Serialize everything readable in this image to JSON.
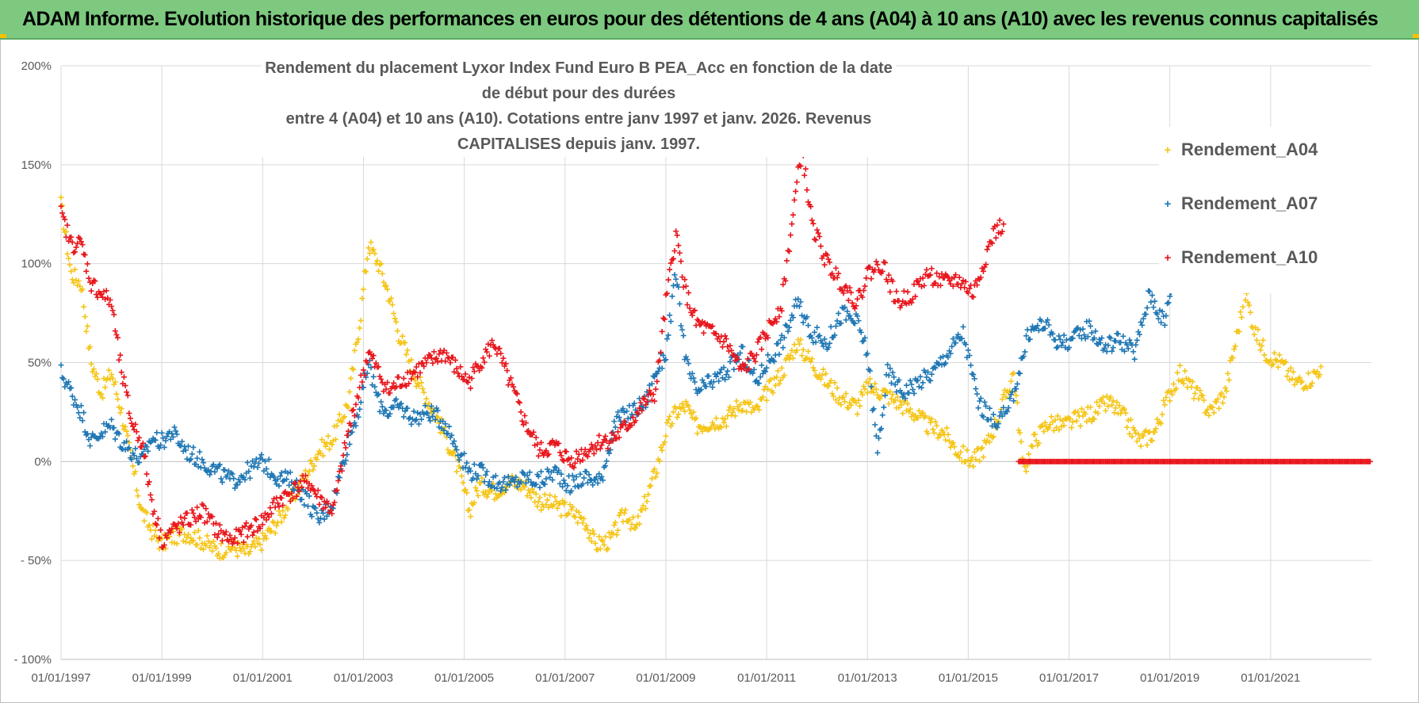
{
  "banner": {
    "title": "ADAM Informe. Evolution historique des performances en euros pour des détentions de 4 ans (A04) à 10 ans (A10) avec les revenus connus capitalisés"
  },
  "colors": {
    "banner_bg": "#7cc97f",
    "A04": "#f5c518",
    "A07": "#1f77b4",
    "A10": "#e8161c",
    "grid": "#d9d9d9",
    "text": "#595959"
  },
  "chart_data": {
    "type": "scatter",
    "title_line1": "Rendement du placement Lyxor Index Fund Euro B PEA_Acc en fonction de la date de début pour des durées",
    "title_line2": "entre 4 (A04) et 10 ans (A10). Cotations entre janv 1997 et janv. 2026. Revenus CAPITALISES depuis janv. 1997.",
    "xlabel": "",
    "ylabel": "",
    "xlim": [
      "1997-01-01",
      "2023-01-01"
    ],
    "ylim": [
      -100,
      200
    ],
    "y_ticks": [
      -100,
      -50,
      0,
      50,
      100,
      150,
      200
    ],
    "y_tick_labels": [
      "- 100%",
      "- 50%",
      "0%",
      "50%",
      "100%",
      "150%",
      "200%"
    ],
    "x_ticks": [
      1997,
      1999,
      2001,
      2003,
      2005,
      2007,
      2009,
      2011,
      2013,
      2015,
      2017,
      2019,
      2021
    ],
    "x_tick_labels": [
      "01/01/1997",
      "01/01/1999",
      "01/01/2001",
      "01/01/2003",
      "01/01/2005",
      "01/01/2007",
      "01/01/2009",
      "01/01/2011",
      "01/01/2013",
      "01/01/2015",
      "01/01/2017",
      "01/01/2019",
      "01/01/2021"
    ],
    "grid": true,
    "legend_position": "top-right",
    "series": [
      {
        "name": "Rendement_A04",
        "color": "#f5c518",
        "marker": "+",
        "points": [
          [
            1997.0,
            130
          ],
          [
            1997.2,
            95
          ],
          [
            1997.4,
            90
          ],
          [
            1997.6,
            50
          ],
          [
            1997.8,
            35
          ],
          [
            1998.0,
            45
          ],
          [
            1998.2,
            25
          ],
          [
            1998.4,
            0
          ],
          [
            1998.6,
            -25
          ],
          [
            1998.8,
            -35
          ],
          [
            1999.0,
            -42
          ],
          [
            1999.2,
            -38
          ],
          [
            1999.5,
            -36
          ],
          [
            1999.8,
            -40
          ],
          [
            2000.1,
            -45
          ],
          [
            2000.4,
            -43
          ],
          [
            2000.7,
            -46
          ],
          [
            2001.0,
            -40
          ],
          [
            2001.3,
            -30
          ],
          [
            2001.6,
            -18
          ],
          [
            2001.9,
            -5
          ],
          [
            2002.1,
            5
          ],
          [
            2002.4,
            12
          ],
          [
            2002.7,
            30
          ],
          [
            2002.95,
            75
          ],
          [
            2003.1,
            110
          ],
          [
            2003.3,
            100
          ],
          [
            2003.5,
            85
          ],
          [
            2003.7,
            65
          ],
          [
            2004.0,
            45
          ],
          [
            2004.3,
            30
          ],
          [
            2004.6,
            15
          ],
          [
            2004.9,
            -5
          ],
          [
            2005.1,
            -25
          ],
          [
            2005.3,
            -12
          ],
          [
            2005.6,
            -15
          ],
          [
            2005.9,
            -10
          ],
          [
            2006.2,
            -12
          ],
          [
            2006.5,
            -20
          ],
          [
            2006.8,
            -22
          ],
          [
            2007.1,
            -25
          ],
          [
            2007.4,
            -30
          ],
          [
            2007.6,
            -42
          ],
          [
            2007.9,
            -40
          ],
          [
            2008.2,
            -25
          ],
          [
            2008.4,
            -35
          ],
          [
            2008.6,
            -20
          ],
          [
            2008.8,
            -5
          ],
          [
            2009.0,
            15
          ],
          [
            2009.2,
            25
          ],
          [
            2009.4,
            28
          ],
          [
            2009.6,
            18
          ],
          [
            2009.9,
            20
          ],
          [
            2010.2,
            22
          ],
          [
            2010.5,
            30
          ],
          [
            2010.8,
            25
          ],
          [
            2011.0,
            35
          ],
          [
            2011.3,
            45
          ],
          [
            2011.6,
            60
          ],
          [
            2011.9,
            50
          ],
          [
            2012.2,
            40
          ],
          [
            2012.5,
            32
          ],
          [
            2012.8,
            28
          ],
          [
            2013.0,
            38
          ],
          [
            2013.3,
            35
          ],
          [
            2013.6,
            30
          ],
          [
            2013.9,
            25
          ],
          [
            2014.2,
            18
          ],
          [
            2014.5,
            15
          ],
          [
            2014.8,
            5
          ],
          [
            2015.1,
            0
          ],
          [
            2015.4,
            10
          ],
          [
            2015.7,
            30
          ],
          [
            2015.9,
            45
          ],
          [
            2016.1,
            -5
          ],
          [
            2016.3,
            10
          ],
          [
            2016.6,
            20
          ],
          [
            2016.9,
            18
          ],
          [
            2017.2,
            22
          ],
          [
            2017.5,
            25
          ],
          [
            2017.8,
            30
          ],
          [
            2018.1,
            22
          ],
          [
            2018.4,
            10
          ],
          [
            2018.7,
            15
          ],
          [
            2019.0,
            35
          ],
          [
            2019.2,
            45
          ],
          [
            2019.5,
            35
          ],
          [
            2019.8,
            25
          ],
          [
            2020.1,
            35
          ],
          [
            2020.3,
            60
          ],
          [
            2020.5,
            85
          ],
          [
            2020.7,
            65
          ],
          [
            2020.9,
            55
          ],
          [
            2021.2,
            50
          ],
          [
            2021.5,
            40
          ],
          [
            2021.8,
            42
          ],
          [
            2022.0,
            48
          ]
        ]
      },
      {
        "name": "Rendement_A07",
        "color": "#1f77b4",
        "marker": "+",
        "points": [
          [
            1997.0,
            45
          ],
          [
            1997.2,
            35
          ],
          [
            1997.4,
            25
          ],
          [
            1997.6,
            10
          ],
          [
            1997.8,
            15
          ],
          [
            1998.0,
            18
          ],
          [
            1998.2,
            10
          ],
          [
            1998.4,
            5
          ],
          [
            1998.6,
            0
          ],
          [
            1998.8,
            12
          ],
          [
            1999.0,
            10
          ],
          [
            1999.2,
            15
          ],
          [
            1999.5,
            5
          ],
          [
            1999.8,
            0
          ],
          [
            2000.1,
            -5
          ],
          [
            2000.4,
            -10
          ],
          [
            2000.7,
            -5
          ],
          [
            2001.0,
            0
          ],
          [
            2001.3,
            -8
          ],
          [
            2001.6,
            -10
          ],
          [
            2001.9,
            -20
          ],
          [
            2002.1,
            -30
          ],
          [
            2002.4,
            -20
          ],
          [
            2002.7,
            10
          ],
          [
            2002.95,
            30
          ],
          [
            2003.1,
            50
          ],
          [
            2003.3,
            30
          ],
          [
            2003.5,
            25
          ],
          [
            2003.7,
            28
          ],
          [
            2004.0,
            22
          ],
          [
            2004.3,
            25
          ],
          [
            2004.6,
            20
          ],
          [
            2004.9,
            5
          ],
          [
            2005.1,
            -5
          ],
          [
            2005.3,
            -5
          ],
          [
            2005.6,
            -10
          ],
          [
            2005.9,
            -12
          ],
          [
            2006.2,
            -8
          ],
          [
            2006.5,
            -10
          ],
          [
            2006.8,
            -5
          ],
          [
            2007.1,
            -12
          ],
          [
            2007.4,
            -8
          ],
          [
            2007.7,
            -10
          ],
          [
            2008.0,
            20
          ],
          [
            2008.3,
            25
          ],
          [
            2008.6,
            30
          ],
          [
            2008.8,
            45
          ],
          [
            2009.0,
            55
          ],
          [
            2009.2,
            95
          ],
          [
            2009.4,
            50
          ],
          [
            2009.6,
            35
          ],
          [
            2009.9,
            40
          ],
          [
            2010.2,
            45
          ],
          [
            2010.5,
            55
          ],
          [
            2010.8,
            40
          ],
          [
            2011.0,
            50
          ],
          [
            2011.3,
            60
          ],
          [
            2011.6,
            80
          ],
          [
            2011.9,
            65
          ],
          [
            2012.2,
            60
          ],
          [
            2012.5,
            75
          ],
          [
            2012.8,
            70
          ],
          [
            2013.0,
            55
          ],
          [
            2013.2,
            5
          ],
          [
            2013.4,
            45
          ],
          [
            2013.7,
            35
          ],
          [
            2014.0,
            40
          ],
          [
            2014.3,
            45
          ],
          [
            2014.6,
            55
          ],
          [
            2014.9,
            65
          ],
          [
            2015.2,
            30
          ],
          [
            2015.5,
            20
          ],
          [
            2015.8,
            25
          ],
          [
            2016.0,
            45
          ],
          [
            2016.2,
            65
          ],
          [
            2016.5,
            70
          ],
          [
            2016.8,
            60
          ],
          [
            2017.1,
            62
          ],
          [
            2017.4,
            68
          ],
          [
            2017.7,
            58
          ],
          [
            2018.0,
            62
          ],
          [
            2018.3,
            55
          ],
          [
            2018.6,
            85
          ],
          [
            2018.9,
            70
          ],
          [
            2019.0,
            85
          ],
          [
            2019.1,
            100
          ]
        ]
      },
      {
        "name": "Rendement_A10",
        "color": "#e8161c",
        "marker": "+",
        "points": [
          [
            1997.0,
            125
          ],
          [
            1997.2,
            110
          ],
          [
            1997.4,
            110
          ],
          [
            1997.6,
            90
          ],
          [
            1997.8,
            85
          ],
          [
            1998.0,
            80
          ],
          [
            1998.2,
            45
          ],
          [
            1998.4,
            20
          ],
          [
            1998.6,
            10
          ],
          [
            1998.8,
            -20
          ],
          [
            1999.0,
            -40
          ],
          [
            1999.2,
            -35
          ],
          [
            1999.5,
            -30
          ],
          [
            1999.8,
            -25
          ],
          [
            2000.1,
            -35
          ],
          [
            2000.4,
            -40
          ],
          [
            2000.7,
            -35
          ],
          [
            2001.0,
            -30
          ],
          [
            2001.3,
            -20
          ],
          [
            2001.6,
            -15
          ],
          [
            2001.9,
            -10
          ],
          [
            2002.1,
            -18
          ],
          [
            2002.4,
            -25
          ],
          [
            2002.7,
            15
          ],
          [
            2002.95,
            40
          ],
          [
            2003.1,
            55
          ],
          [
            2003.3,
            45
          ],
          [
            2003.5,
            35
          ],
          [
            2003.7,
            40
          ],
          [
            2004.0,
            45
          ],
          [
            2004.3,
            50
          ],
          [
            2004.6,
            55
          ],
          [
            2004.9,
            45
          ],
          [
            2005.1,
            40
          ],
          [
            2005.3,
            50
          ],
          [
            2005.6,
            60
          ],
          [
            2005.9,
            40
          ],
          [
            2006.2,
            20
          ],
          [
            2006.5,
            5
          ],
          [
            2006.8,
            8
          ],
          [
            2007.1,
            0
          ],
          [
            2007.4,
            5
          ],
          [
            2007.7,
            10
          ],
          [
            2008.0,
            12
          ],
          [
            2008.3,
            20
          ],
          [
            2008.6,
            30
          ],
          [
            2008.8,
            35
          ],
          [
            2009.0,
            80
          ],
          [
            2009.2,
            115
          ],
          [
            2009.4,
            85
          ],
          [
            2009.6,
            70
          ],
          [
            2009.9,
            65
          ],
          [
            2010.2,
            60
          ],
          [
            2010.5,
            45
          ],
          [
            2010.8,
            55
          ],
          [
            2011.0,
            65
          ],
          [
            2011.3,
            80
          ],
          [
            2011.6,
            140
          ],
          [
            2011.7,
            158
          ],
          [
            2011.9,
            120
          ],
          [
            2012.2,
            100
          ],
          [
            2012.5,
            90
          ],
          [
            2012.8,
            80
          ],
          [
            2013.0,
            95
          ],
          [
            2013.3,
            100
          ],
          [
            2013.6,
            80
          ],
          [
            2013.9,
            85
          ],
          [
            2014.2,
            95
          ],
          [
            2014.5,
            90
          ],
          [
            2014.8,
            92
          ],
          [
            2015.1,
            85
          ],
          [
            2015.3,
            100
          ],
          [
            2015.5,
            115
          ],
          [
            2015.7,
            120
          ]
        ]
      }
    ],
    "zero_band": {
      "series": "Rendement_A10",
      "x_start": 2016.0,
      "x_end": 2023.0,
      "value": 0
    }
  },
  "legend": {
    "items": [
      {
        "label": "Rendement_A04",
        "color": "#f5c518"
      },
      {
        "label": "Rendement_A07",
        "color": "#1f77b4"
      },
      {
        "label": "Rendement_A10",
        "color": "#e8161c"
      }
    ]
  }
}
